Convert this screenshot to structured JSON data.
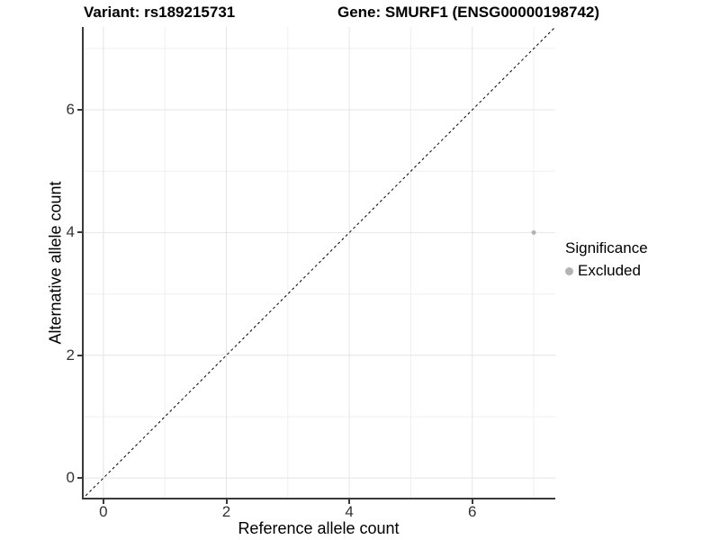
{
  "title": {
    "variant": "Variant: rs189215731",
    "gene": "Gene: SMURF1 (ENSG00000198742)"
  },
  "axes": {
    "x_label": "Reference allele count",
    "y_label": "Alternative allele count"
  },
  "legend": {
    "title": "Significance",
    "items": [
      {
        "label": "Excluded",
        "color": "#b3b3b3"
      }
    ]
  },
  "chart_data": {
    "type": "scatter",
    "title": "Variant: rs189215731   Gene: SMURF1 (ENSG00000198742)",
    "xlabel": "Reference allele count",
    "ylabel": "Alternative allele count",
    "xlim": [
      -0.35,
      7.35
    ],
    "ylim": [
      -0.35,
      7.35
    ],
    "x_major_ticks": [
      0,
      2,
      4,
      6
    ],
    "y_major_ticks": [
      0,
      2,
      4,
      6
    ],
    "x_minor_gridlines": [
      1,
      3,
      5,
      7
    ],
    "y_minor_gridlines": [
      1,
      3,
      5,
      7
    ],
    "grid": true,
    "legend_position": "right",
    "identity_line": {
      "style": "dashed",
      "color": "#000000",
      "from": [
        -0.35,
        -0.35
      ],
      "to": [
        7.35,
        7.35
      ]
    },
    "series": [
      {
        "name": "Excluded",
        "color": "#b3b3b3",
        "points": [
          {
            "x": 7,
            "y": 4
          }
        ]
      }
    ],
    "style_colors": {
      "axis_line": "#3a3a3a",
      "major_grid": "#e4e4e4",
      "minor_grid": "#efefef",
      "point": "#b3b3b3"
    }
  }
}
